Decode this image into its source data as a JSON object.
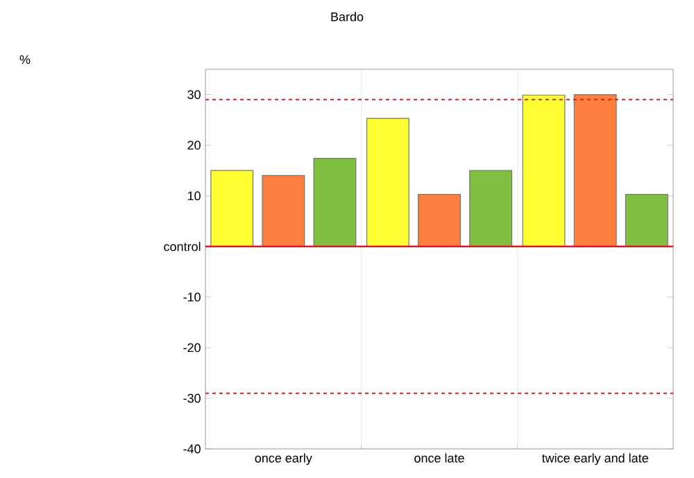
{
  "chart_data": {
    "type": "bar",
    "title": "Bardo",
    "annotations": [
      "%"
    ],
    "categories": [
      "once early",
      "once late",
      "twice early and late"
    ],
    "series": [
      {
        "color": "#ffff33",
        "values": [
          15,
          25.3,
          29.9
        ]
      },
      {
        "color": "#ff7f3f",
        "values": [
          14,
          10.3,
          30
        ]
      },
      {
        "color": "#80c040",
        "values": [
          17.4,
          15,
          10.3
        ]
      }
    ],
    "ylim": [
      -40,
      35
    ],
    "yticks": [
      -40,
      -30,
      -20,
      -10,
      {
        "value": 0,
        "label": "control"
      },
      10,
      20,
      30
    ],
    "grid": "x",
    "ref_lines": [
      {
        "axis": "y",
        "value": 0,
        "color": "#e8191d",
        "line_style": "solid"
      },
      {
        "axis": "y",
        "value": 29,
        "color": "#d0202a",
        "line_style": "dashed"
      },
      {
        "axis": "y",
        "value": -29,
        "color": "#d0202a",
        "line_style": "dashed"
      }
    ]
  }
}
